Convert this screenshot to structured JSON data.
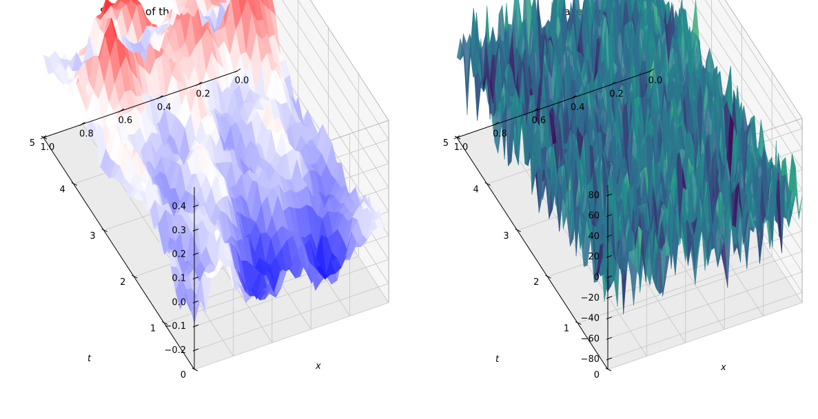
{
  "chart_data": [
    {
      "type": "surface3d",
      "title": "Solution of the Stochastic Heat Equation",
      "xlabel": "x",
      "ylabel": "t",
      "zlabel": "",
      "x_ticks": [
        "0.0",
        "0.2",
        "0.4",
        "0.6",
        "0.8",
        "1.0"
      ],
      "t_ticks": [
        "0",
        "1",
        "2",
        "3",
        "4",
        "5"
      ],
      "z_ticks": [
        "−0.2",
        "−0.1",
        "0.0",
        "0.1",
        "0.2",
        "0.3",
        "0.4"
      ],
      "xlim": [
        0,
        1
      ],
      "tlim": [
        0,
        5
      ],
      "zlim": [
        -0.28,
        0.48
      ],
      "colormap": "bwr",
      "colors": {
        "low": "#0000ff",
        "mid": "#ffffff",
        "high": "#ff0000"
      },
      "peak_value": 0.47,
      "trough_value": -0.3
    },
    {
      "type": "surface3d",
      "title": "Space Time White Noise",
      "xlabel": "x",
      "ylabel": "t",
      "zlabel": "",
      "x_ticks": [
        "0.0",
        "0.2",
        "0.4",
        "0.6",
        "0.8",
        "1.0"
      ],
      "t_ticks": [
        "0",
        "1",
        "2",
        "3",
        "4",
        "5"
      ],
      "z_ticks": [
        "−80",
        "−60",
        "−40",
        "−20",
        "0",
        "20",
        "40",
        "60",
        "80"
      ],
      "xlim": [
        0,
        1
      ],
      "tlim": [
        0,
        5
      ],
      "zlim": [
        -90,
        90
      ],
      "colormap": "viridis",
      "colors": {
        "low": "#440154",
        "mid": "#21918c",
        "high": "#5ec962"
      }
    }
  ]
}
